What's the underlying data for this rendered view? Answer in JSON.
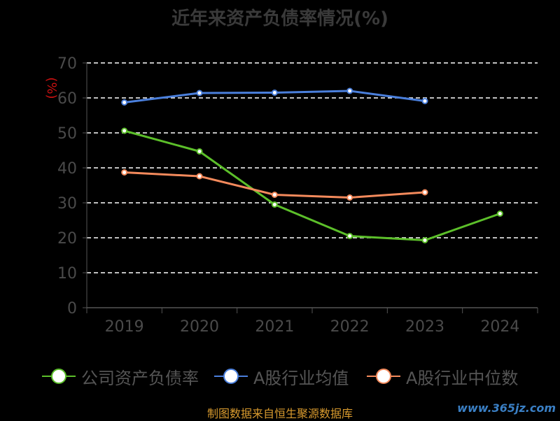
{
  "chart_data": {
    "type": "line",
    "title": "近年来资产负债率情况(%)",
    "ylabel": "(%)",
    "categories": [
      "2019",
      "2020",
      "2021",
      "2022",
      "2023",
      "2024"
    ],
    "ylim": [
      0,
      70
    ],
    "yticks": [
      "0",
      "10",
      "20",
      "30",
      "40",
      "50",
      "60",
      "70"
    ],
    "grid": true,
    "legend_position": "bottom",
    "series": [
      {
        "name": "公司资产负债率",
        "color": "#5cbf2a",
        "values": [
          50.6,
          44.7,
          29.5,
          20.5,
          19.3,
          26.9
        ]
      },
      {
        "name": "A股行业均值",
        "color": "#4a7fdc",
        "values": [
          58.7,
          61.4,
          61.5,
          62.0,
          59.1,
          null
        ]
      },
      {
        "name": "A股行业中位数",
        "color": "#f48a5c",
        "values": [
          38.7,
          37.6,
          32.3,
          31.5,
          33.0,
          null
        ]
      }
    ]
  },
  "footer": {
    "source": "制图数据来自恒生聚源数据库",
    "watermark": "www.365jz.com"
  }
}
